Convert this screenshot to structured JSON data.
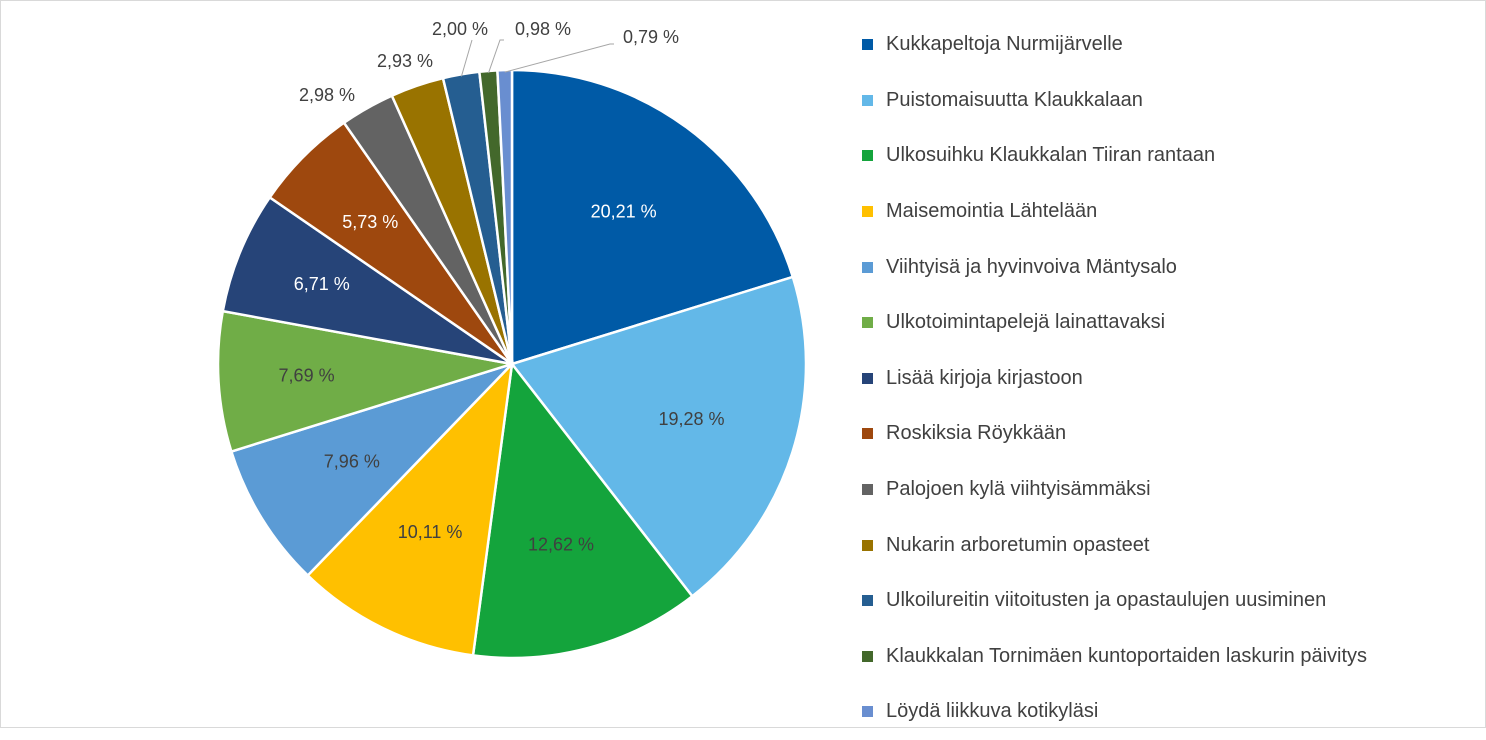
{
  "chart_data": {
    "type": "pie",
    "title": "",
    "legend_position": "right",
    "slices": [
      {
        "label": "Kukkapeltoja Nurmijärvelle",
        "value": 20.21,
        "value_label": "20,21 %",
        "color": "#005aa6",
        "label_color": "#ffffff"
      },
      {
        "label": "Puistomaisuutta Klaukkalaan",
        "value": 19.28,
        "value_label": "19,28 %",
        "color": "#63b8e8",
        "label_color": "#404040"
      },
      {
        "label": "Ulkosuihku Klaukkalan Tiiran rantaan",
        "value": 12.62,
        "value_label": "12,62 %",
        "color": "#14a43c",
        "label_color": "#404040"
      },
      {
        "label": "Maisemointia Lähtelään",
        "value": 10.11,
        "value_label": "10,11 %",
        "color": "#ffc000",
        "label_color": "#404040"
      },
      {
        "label": "Viihtyisä  ja hyvinvoiva Mäntysalo",
        "value": 7.96,
        "value_label": "7,96 %",
        "color": "#5b9bd5",
        "label_color": "#404040"
      },
      {
        "label": "Ulkotoimintapelejä lainattavaksi",
        "value": 7.69,
        "value_label": "7,69 %",
        "color": "#70ad47",
        "label_color": "#404040"
      },
      {
        "label": "Lisää kirjoja kirjastoon",
        "value": 6.71,
        "value_label": "6,71 %",
        "color": "#264478",
        "label_color": "#ffffff"
      },
      {
        "label": "Roskiksia Röykkään",
        "value": 5.73,
        "value_label": "5,73 %",
        "color": "#9e480e",
        "label_color": "#ffffff"
      },
      {
        "label": "Palojoen kylä viihtyisämmäksi",
        "value": 2.98,
        "value_label": "2,98 %",
        "color": "#636363",
        "label_color": "#404040"
      },
      {
        "label": "Nukarin arboretumin opasteet",
        "value": 2.93,
        "value_label": "2,93 %",
        "color": "#997300",
        "label_color": "#404040"
      },
      {
        "label": "Ulkoilureitin viitoitusten ja opastaulujen uusiminen",
        "value": 2.0,
        "value_label": "2,00 %",
        "color": "#255e91",
        "label_color": "#404040"
      },
      {
        "label": "Klaukkalan Tornimäen kuntoportaiden laskurin päivitys",
        "value": 0.98,
        "value_label": "0,98 %",
        "color": "#43682b",
        "label_color": "#404040"
      },
      {
        "label": "Löydä liikkuva kotikyläsi",
        "value": 0.79,
        "value_label": "0,79 %",
        "color": "#698ed0",
        "label_color": "#404040"
      }
    ]
  }
}
